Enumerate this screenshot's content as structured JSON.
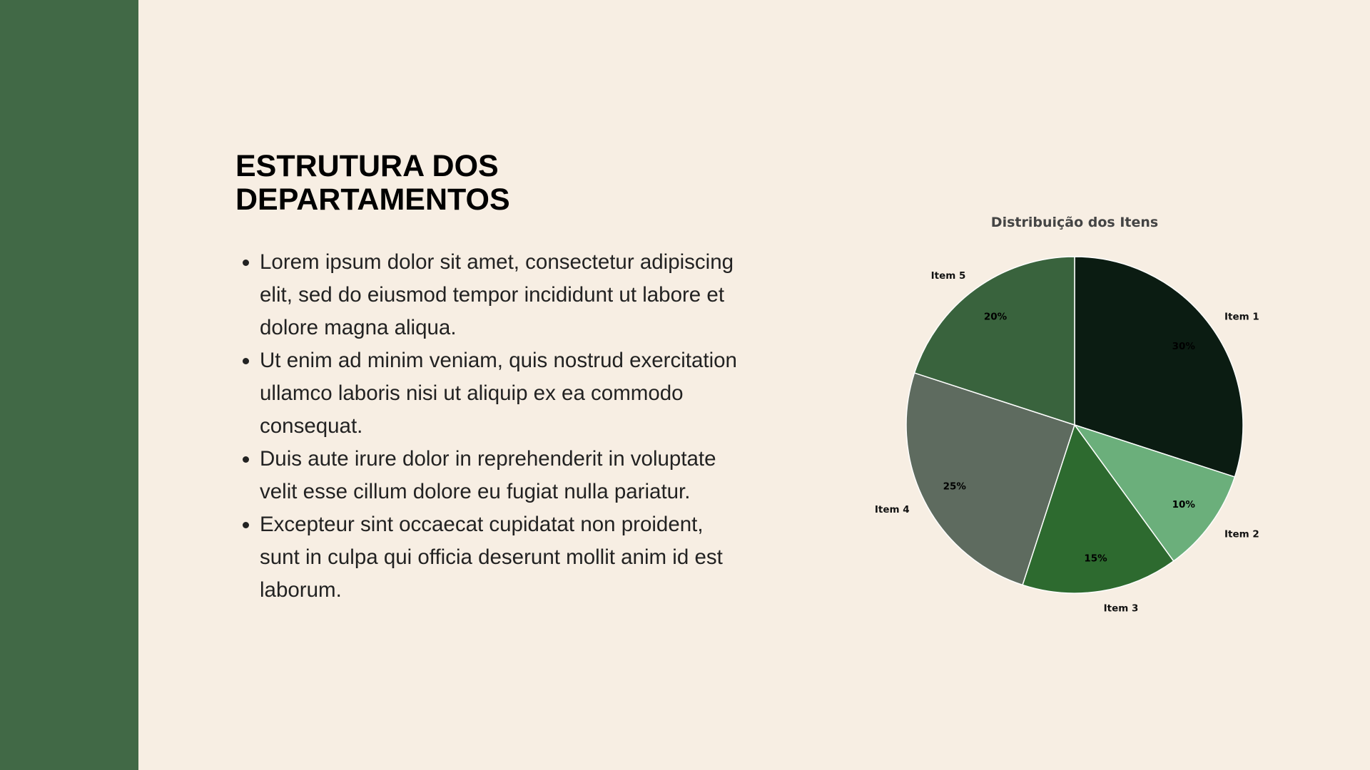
{
  "slide": {
    "title": "ESTRUTURA DOS DEPARTAMENTOS",
    "bullets": [
      "Lorem ipsum dolor sit amet, consectetur adipiscing elit, sed do eiusmod tempor incididunt ut labore et dolore magna aliqua.",
      "Ut enim ad minim veniam, quis nostrud exercitation ullamco laboris nisi ut aliquip ex ea commodo consequat.",
      "Duis aute irure dolor in reprehenderit in voluptate velit esse cillum dolore eu fugiat nulla pariatur.",
      "Excepteur sint occaecat cupidatat non proident, sunt in culpa qui officia deserunt mollit anim id est laborum."
    ]
  },
  "colors": {
    "sidebar": "#416946",
    "background": "#f7eee3"
  },
  "chart_data": {
    "type": "pie",
    "title": "Distribuição dos Itens",
    "categories": [
      "Item 1",
      "Item 2",
      "Item 3",
      "Item 4",
      "Item 5"
    ],
    "values": [
      30,
      10,
      15,
      25,
      20
    ],
    "percent_labels": [
      "30%",
      "10%",
      "15%",
      "25%",
      "20%"
    ],
    "colors": [
      "#0b1c12",
      "#6baf7b",
      "#2d6a2f",
      "#5e6b5f",
      "#39633d"
    ],
    "start_angle": "12 o'clock",
    "direction": "clockwise",
    "legend": "none"
  }
}
